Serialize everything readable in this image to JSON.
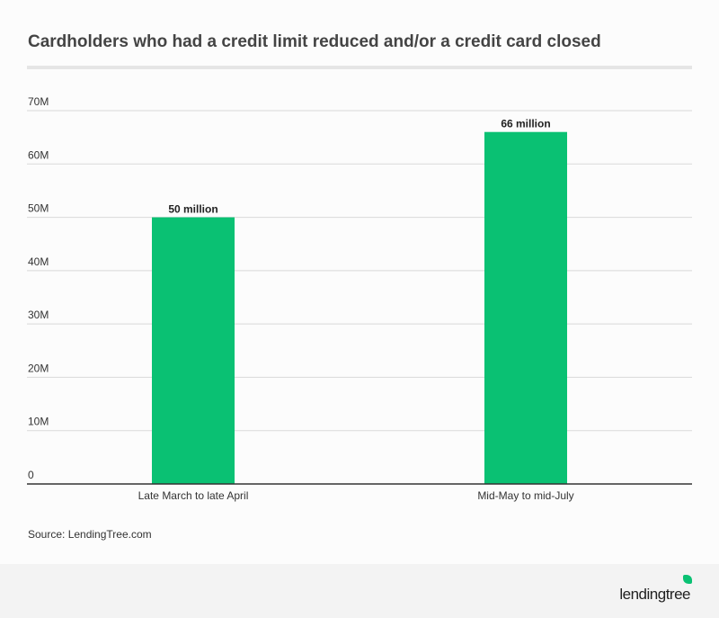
{
  "chart_data": {
    "type": "bar",
    "title": "Cardholders who had a credit limit reduced and/or a credit card closed",
    "categories": [
      "Late March to late April",
      "Mid-May to mid-July"
    ],
    "values": [
      50,
      66
    ],
    "data_labels": [
      "50 million",
      "66 million"
    ],
    "yticks": [
      0,
      10,
      20,
      30,
      40,
      50,
      60,
      70
    ],
    "ytick_labels": [
      "0",
      "10M",
      "20M",
      "30M",
      "40M",
      "50M",
      "60M",
      "70M"
    ],
    "ylim": [
      0,
      70
    ],
    "grid": true,
    "bar_color": "#0ac173",
    "source": "Source: LendingTree.com"
  },
  "logo": "lendingtree"
}
